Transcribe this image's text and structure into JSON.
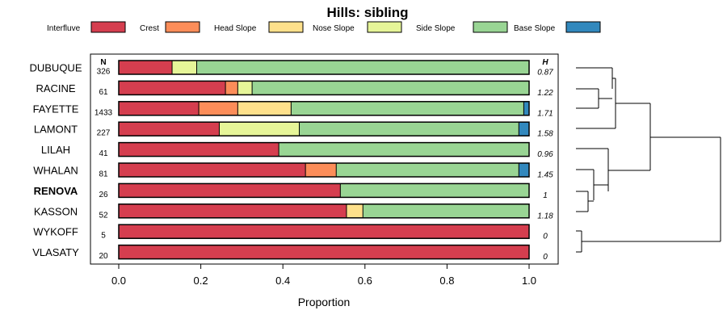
{
  "chart_data": {
    "type": "bar",
    "orientation": "horizontal",
    "stacked": true,
    "title": "Hills: sibling",
    "xlabel": "Proportion",
    "xlim": [
      0,
      1
    ],
    "xticks": [
      "0.0",
      "0.2",
      "0.4",
      "0.6",
      "0.8",
      "1.0"
    ],
    "n_header": "N",
    "h_header": "H",
    "categories": [
      "DUBUQUE",
      "RACINE",
      "FAYETTE",
      "LAMONT",
      "LILAH",
      "WHALAN",
      "RENOVA",
      "KASSON",
      "WYKOFF",
      "VLASATY"
    ],
    "highlight": "RENOVA",
    "n_values": [
      "326",
      "61",
      "1433",
      "227",
      "41",
      "81",
      "26",
      "52",
      "5",
      "20"
    ],
    "h_values": [
      "0.87",
      "1.22",
      "1.71",
      "1.58",
      "0.96",
      "1.45",
      "1",
      "1.18",
      "0",
      "0"
    ],
    "series": [
      {
        "name": "Interfluve",
        "color": "#d53e4f",
        "values": [
          0.13,
          0.26,
          0.195,
          0.245,
          0.39,
          0.455,
          0.54,
          0.555,
          1.0,
          1.0
        ]
      },
      {
        "name": "Crest",
        "color": "#fc8d59",
        "values": [
          0,
          0.03,
          0.095,
          0,
          0,
          0.075,
          0,
          0,
          0,
          0
        ]
      },
      {
        "name": "Head Slope",
        "color": "#fee08b",
        "values": [
          0,
          0,
          0.13,
          0,
          0,
          0,
          0,
          0.04,
          0,
          0
        ]
      },
      {
        "name": "Nose Slope",
        "color": "#e6f598",
        "values": [
          0.06,
          0.035,
          0,
          0.195,
          0,
          0,
          0,
          0,
          0,
          0
        ]
      },
      {
        "name": "Side Slope",
        "color": "#99d594",
        "values": [
          0.81,
          0.675,
          0.567,
          0.535,
          0.61,
          0.445,
          0.46,
          0.405,
          0,
          0
        ]
      },
      {
        "name": "Base Slope",
        "color": "#3288bd",
        "values": [
          0,
          0,
          0.013,
          0.025,
          0,
          0.025,
          0,
          0,
          0,
          0
        ]
      }
    ]
  }
}
